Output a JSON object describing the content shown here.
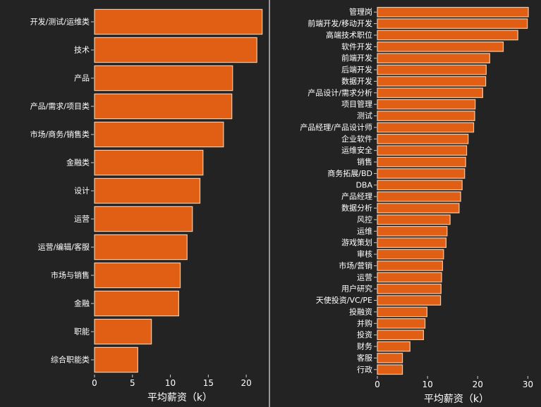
{
  "colors": {
    "background": "#232323",
    "bar_fill": "#e15f14",
    "bar_edge": "#f2c9a8",
    "text": "#ffffff",
    "axis": "#cccccc",
    "divider": "#bfbfbf"
  },
  "chart_data": [
    {
      "type": "bar",
      "orientation": "horizontal",
      "xlabel": "平均薪资（k）",
      "ylabel": "",
      "xlim": [
        0,
        22.5
      ],
      "xticks": [
        0,
        5,
        10,
        15,
        20
      ],
      "grid": false,
      "categories": [
        "开发/测试/运维类",
        "技术",
        "产品",
        "产品/需求/项目类",
        "市场/商务/销售类",
        "金融类",
        "设计",
        "运营",
        "运营/编辑/客服",
        "市场与销售",
        "金融",
        "职能",
        "综合职能类"
      ],
      "values": [
        22.1,
        21.4,
        18.2,
        18.1,
        17.0,
        14.3,
        13.9,
        12.9,
        12.2,
        11.3,
        11.1,
        7.5,
        5.7
      ]
    },
    {
      "type": "bar",
      "orientation": "horizontal",
      "xlabel": "平均薪资（k）",
      "ylabel": "",
      "xlim": [
        0,
        31.5
      ],
      "xticks": [
        0,
        10,
        20,
        30
      ],
      "grid": false,
      "categories": [
        "管理岗",
        "前端开发/移动开发",
        "高端技术职位",
        "软件开发",
        "前端开发",
        "后端开发",
        "数据开发",
        "产品设计/需求分析",
        "项目管理",
        "测试",
        "产品经理/产品设计师",
        "企业软件",
        "运维安全",
        "销售",
        "商务拓展/BD",
        "DBA",
        "产品经理",
        "数据分析",
        "风控",
        "运维",
        "游戏策划",
        "审核",
        "市场/营销",
        "运营",
        "用户研究",
        "天使投资/VC/PE",
        "投融资",
        "并购",
        "投资",
        "财务",
        "客服",
        "行政"
      ],
      "values": [
        30.1,
        29.9,
        28.0,
        25.1,
        22.4,
        21.7,
        21.6,
        21.0,
        19.5,
        19.4,
        19.2,
        18.1,
        17.8,
        17.6,
        17.4,
        16.9,
        16.6,
        16.3,
        14.5,
        13.9,
        13.7,
        13.2,
        13.0,
        12.8,
        12.7,
        12.6,
        9.9,
        9.5,
        9.2,
        6.5,
        5.0,
        5.0
      ]
    }
  ]
}
